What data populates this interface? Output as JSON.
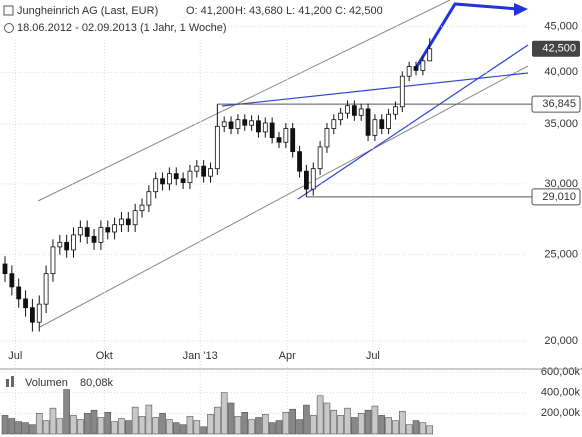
{
  "chart_data": {
    "type": "candlestick",
    "title": "Jungheinrich AG (Last, EUR)",
    "ohlc_labels": [
      "O: 41,200",
      "H: 43,680",
      "L: 41,200",
      "C: 42,500"
    ],
    "subtitle": "18.06.2012 - 02.09.2013 (1 Jahr, 1 Woche)",
    "log_scale": true,
    "grid": true,
    "up_color": "#ffffff",
    "down_color": "#111111",
    "xlim": [
      -0.73,
      76.35
    ],
    "xticks": [
      {
        "value": 1.5,
        "label": "Jul"
      },
      {
        "value": 14.5,
        "label": "Okt"
      },
      {
        "value": 28.5,
        "label": "Jan '13"
      },
      {
        "value": 41.2,
        "label": "Apr"
      },
      {
        "value": 53.7,
        "label": "Jul"
      }
    ],
    "ylim": [
      18.66,
      48.2
    ],
    "yticks": [
      {
        "value": 45,
        "label": "45,000"
      },
      {
        "value": 40,
        "label": "40,000"
      },
      {
        "value": 35,
        "label": "35,000"
      },
      {
        "value": 30,
        "label": "30,000"
      },
      {
        "value": 25,
        "label": "25,000"
      },
      {
        "value": 20,
        "label": "20,000"
      }
    ],
    "open": [
      24.4,
      23.8,
      23.0,
      22.3,
      21.8,
      21.0,
      22.0,
      23.8,
      25.5,
      25.8,
      25.3,
      26.3,
      26.8,
      26.2,
      25.8,
      26.8,
      26.5,
      27.0,
      27.4,
      27.0,
      28.0,
      28.4,
      29.4,
      30.4,
      30.0,
      30.8,
      30.4,
      30.1,
      31.0,
      31.4,
      30.6,
      31.2,
      34.8,
      35.2,
      34.6,
      35.4,
      34.9,
      35.3,
      34.3,
      35.1,
      33.8,
      33.4,
      34.6,
      32.6,
      31.0,
      29.6,
      31.2,
      33.0,
      34.6,
      35.4,
      36.0,
      36.7,
      35.8,
      36.4,
      34.0,
      35.4,
      34.6,
      35.9,
      36.6,
      39.6,
      40.6,
      40.2,
      41.2
    ],
    "high": [
      24.9,
      24.3,
      23.5,
      22.8,
      22.3,
      22.5,
      24.3,
      26.0,
      26.3,
      26.3,
      26.8,
      27.3,
      27.3,
      26.7,
      27.3,
      27.3,
      27.5,
      27.9,
      27.9,
      28.5,
      28.9,
      29.9,
      30.9,
      30.9,
      31.3,
      31.3,
      30.9,
      31.5,
      31.9,
      31.9,
      31.7,
      36.845,
      35.7,
      35.7,
      35.9,
      35.9,
      35.8,
      35.8,
      35.6,
      35.6,
      34.3,
      35.1,
      35.1,
      33.1,
      31.5,
      31.7,
      33.5,
      35.1,
      35.9,
      36.5,
      37.2,
      37.2,
      36.9,
      36.9,
      35.9,
      35.9,
      36.4,
      37.1,
      40.1,
      41.1,
      41.1,
      41.7,
      43.68
    ],
    "low": [
      23.3,
      22.5,
      21.8,
      21.3,
      20.5,
      20.5,
      21.5,
      23.3,
      25.0,
      24.8,
      24.8,
      25.8,
      25.7,
      25.3,
      25.3,
      26.0,
      26.0,
      26.5,
      26.5,
      26.5,
      27.5,
      27.9,
      28.9,
      29.5,
      29.5,
      29.9,
      29.6,
      29.6,
      30.5,
      30.1,
      30.1,
      30.7,
      34.3,
      34.1,
      34.1,
      34.4,
      34.4,
      33.8,
      33.8,
      33.3,
      32.9,
      32.9,
      32.1,
      30.5,
      29.01,
      29.1,
      30.7,
      32.5,
      34.1,
      34.9,
      35.5,
      35.3,
      35.3,
      33.5,
      33.5,
      34.1,
      34.1,
      35.4,
      36.1,
      39.1,
      39.7,
      39.7,
      41.2
    ],
    "close": [
      23.8,
      23.0,
      22.3,
      21.8,
      21.0,
      22.0,
      23.8,
      25.5,
      25.8,
      25.3,
      26.3,
      26.8,
      26.2,
      25.8,
      26.8,
      26.5,
      27.0,
      27.4,
      27.0,
      28.0,
      28.4,
      29.4,
      30.4,
      30.0,
      30.8,
      30.4,
      30.1,
      31.0,
      31.4,
      30.6,
      31.2,
      34.8,
      35.2,
      34.6,
      35.4,
      34.9,
      35.3,
      34.3,
      35.1,
      33.8,
      33.4,
      34.6,
      32.6,
      31.0,
      29.6,
      31.2,
      33.0,
      34.6,
      35.4,
      36.0,
      36.7,
      35.8,
      36.4,
      34.0,
      35.4,
      34.6,
      35.9,
      36.6,
      39.6,
      40.6,
      40.2,
      41.2,
      42.5
    ],
    "current": {
      "value": 42.5,
      "label": "42,500"
    },
    "levels": [
      {
        "value": 36.845,
        "label": "36,845",
        "from": 31
      },
      {
        "value": 29.01,
        "label": "29,010",
        "from": 44
      }
    ],
    "volume": {
      "title": "Volumen",
      "value": 80080,
      "value_label": "80,08k",
      "color": "#c8c8c8",
      "ylim": [
        0,
        600000
      ],
      "yticks": [
        {
          "value": 600000,
          "label": "600,00k"
        },
        {
          "value": 400000,
          "label": "400,00k"
        },
        {
          "value": 200000,
          "label": "200,00k"
        }
      ],
      "values": [
        180000,
        150000,
        120000,
        110000,
        90000,
        200000,
        130000,
        250000,
        150000,
        430000,
        180000,
        140000,
        200000,
        230000,
        160000,
        210000,
        120000,
        150000,
        130000,
        260000,
        170000,
        280000,
        160000,
        200000,
        140000,
        110000,
        90000,
        170000,
        130000,
        70000,
        190000,
        260000,
        400000,
        300000,
        170000,
        210000,
        140000,
        160000,
        190000,
        110000,
        130000,
        210000,
        240000,
        140000,
        280000,
        180000,
        370000,
        300000,
        230000,
        180000,
        250000,
        160000,
        200000,
        230000,
        270000,
        180000,
        160000,
        130000,
        220000,
        90000,
        130000,
        110000,
        80080
      ]
    }
  }
}
